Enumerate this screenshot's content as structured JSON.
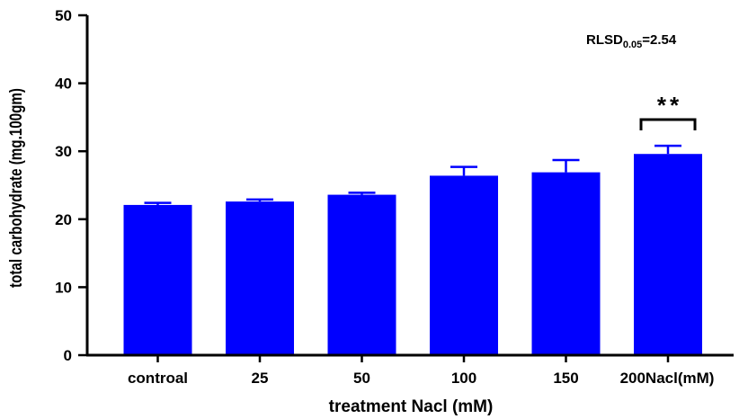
{
  "chart_data": {
    "type": "bar",
    "title": "",
    "xlabel": "treatment Nacl (mM)",
    "ylabel": "total carbohydrate (mg.100gm)",
    "categories": [
      "controal",
      "25",
      "50",
      "100",
      "150",
      "200Nacl(mM)"
    ],
    "values": [
      22.1,
      22.6,
      23.6,
      26.4,
      26.9,
      29.6
    ],
    "errors": [
      0.3,
      0.3,
      0.3,
      1.3,
      1.8,
      1.2
    ],
    "ylim": [
      0,
      50
    ],
    "yticks": [
      0,
      10,
      20,
      30,
      40,
      50
    ],
    "bar_color": "#0000ff",
    "grid": false,
    "annotations": {
      "significance": "**",
      "significance_category": "200Nacl(mM)",
      "rlsd_prefix": "RLSD",
      "rlsd_subscript": "0.05",
      "rlsd_suffix": "=2.54"
    }
  }
}
